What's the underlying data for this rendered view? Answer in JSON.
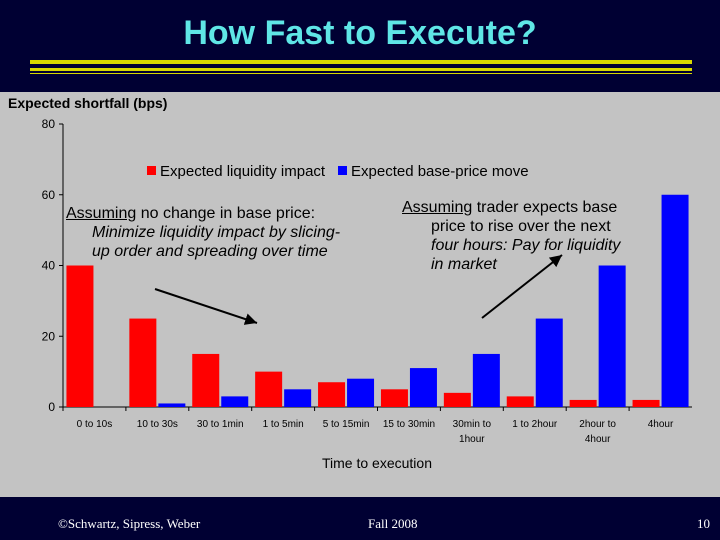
{
  "slide": {
    "title": "How Fast to Execute?",
    "panel_label": "Expected shortfall (bps)",
    "footer_left": "©Schwartz, Sipress, Weber",
    "footer_center": "Fall 2008",
    "page_number": "10"
  },
  "annotations": {
    "left_word1": "Assuming",
    "left_rest1": " no change in base price:",
    "left_line2": "Minimize liquidity impact by slicing-",
    "left_line3": "up order and spreading over time",
    "right_word1": "Assuming",
    "right_rest1": " trader expects base",
    "right_line2": "price to rise over the next",
    "right_line3": "four hours: Pay for liquidity",
    "right_line4": "in market"
  },
  "colors": {
    "background": "#000033",
    "title": "#5fe6e6",
    "rule": "#d8d800",
    "panel": "#c3c3c3",
    "liquidity": "#ff0000",
    "baseprice": "#0000ff"
  },
  "chart_data": {
    "type": "bar",
    "categories": [
      [
        "0 to 10s"
      ],
      [
        "10 to 30s"
      ],
      [
        "30 to 1min"
      ],
      [
        "1 to 5min"
      ],
      [
        "5 to 15min"
      ],
      [
        "15 to 30min"
      ],
      [
        "30min to",
        "1hour"
      ],
      [
        "1 to 2hour"
      ],
      [
        "2hour to",
        "4hour"
      ],
      [
        "4hour"
      ]
    ],
    "series": [
      {
        "name": "Expected liquidity impact",
        "color": "#ff0000",
        "values": [
          40,
          25,
          15,
          10,
          7,
          5,
          4,
          3,
          2,
          2
        ]
      },
      {
        "name": "Expected base-price move",
        "color": "#0000ff",
        "values": [
          0,
          1,
          3,
          5,
          8,
          11,
          15,
          25,
          40,
          60
        ]
      }
    ],
    "xlabel": "Time to execution",
    "ylabel": "",
    "ylim": [
      0,
      80
    ],
    "yticks": [
      0,
      20,
      40,
      60,
      80
    ],
    "legend": "top-center",
    "grid": false
  }
}
